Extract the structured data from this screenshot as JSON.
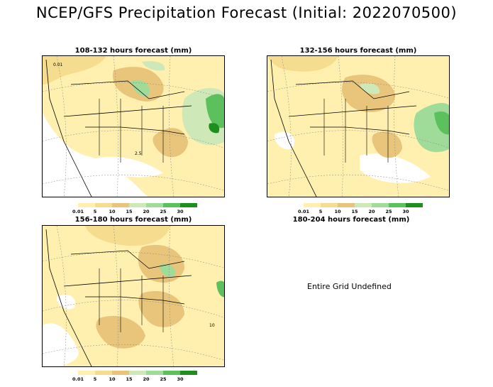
{
  "title": "NCEP/GFS Precipitation Forecast (Initial: 2022070500)",
  "panels": [
    {
      "title": "108-132 hours forecast (mm)"
    },
    {
      "title": "132-156 hours forecast (mm)"
    },
    {
      "title": "156-180 hours forecast (mm)"
    },
    {
      "title": "180-204 hours forecast (mm)",
      "message": "Entire Grid Undefined"
    }
  ],
  "legend": {
    "labels": [
      "0.01",
      "5",
      "10",
      "15",
      "20",
      "25",
      "30"
    ],
    "colors": [
      "#fff0b0",
      "#f6dc8e",
      "#e8c57a",
      "#cfe8b8",
      "#9fdc9a",
      "#5cc05c",
      "#1e8f1e"
    ]
  },
  "contour_labels": [
    "0.01",
    "2.5",
    "10"
  ]
}
